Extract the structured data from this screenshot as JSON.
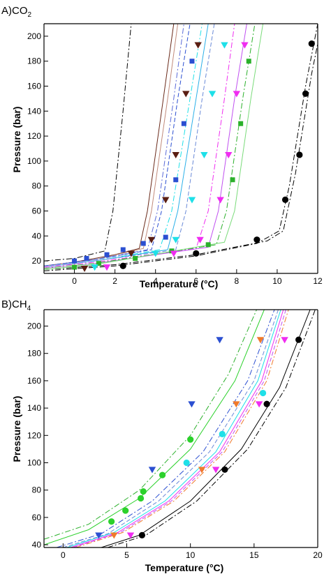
{
  "chart_data": [
    {
      "type": "scatter",
      "panel_label": "A)CO",
      "panel_subscript": "2",
      "xlabel": "Temperature (°C)",
      "ylabel": "Pressure (bar)",
      "xlim": [
        -1.5,
        12
      ],
      "ylim": [
        10,
        210
      ],
      "xticks": [
        0,
        2,
        4,
        6,
        8,
        10,
        12
      ],
      "yticks": [
        20,
        40,
        60,
        80,
        100,
        120,
        140,
        160,
        180,
        200
      ],
      "series": [
        {
          "marker": "circle",
          "color": "#000000",
          "points": [
            [
              2.4,
              16
            ],
            [
              6.0,
              26
            ],
            [
              9.0,
              37
            ],
            [
              10.4,
              69
            ],
            [
              11.1,
              105
            ],
            [
              11.4,
              154
            ],
            [
              11.7,
              194
            ]
          ]
        },
        {
          "marker": "square",
          "color": "#2b4fd1",
          "points": [
            [
              0.0,
              20
            ],
            [
              0.6,
              22
            ],
            [
              1.6,
              25
            ],
            [
              2.4,
              29
            ],
            [
              3.4,
              34
            ],
            [
              4.5,
              39
            ],
            [
              5.0,
              85
            ],
            [
              5.4,
              130
            ],
            [
              5.8,
              180
            ]
          ]
        },
        {
          "marker": "square",
          "color": "#2bb02b",
          "points": [
            [
              0.0,
              15
            ],
            [
              1.2,
              18
            ],
            [
              3.0,
              22
            ],
            [
              4.8,
              28
            ],
            [
              6.6,
              33
            ],
            [
              7.8,
              85
            ],
            [
              8.2,
              130
            ],
            [
              8.6,
              180
            ]
          ]
        },
        {
          "marker": "triangle-down",
          "color": "#5a1e12",
          "points": [
            [
              0.5,
              14
            ],
            [
              2.8,
              26
            ],
            [
              3.8,
              37
            ],
            [
              4.5,
              69
            ],
            [
              5.0,
              105
            ],
            [
              5.5,
              154
            ],
            [
              6.1,
              193
            ]
          ]
        },
        {
          "marker": "triangle-down",
          "color": "#1ee0e8",
          "points": [
            [
              1.0,
              15
            ],
            [
              4.0,
              26
            ],
            [
              5.0,
              37
            ],
            [
              5.8,
              69
            ],
            [
              6.4,
              105
            ],
            [
              6.8,
              154
            ],
            [
              7.4,
              193
            ]
          ]
        },
        {
          "marker": "triangle-down",
          "color": "#f02cf0",
          "points": [
            [
              1.6,
              15
            ],
            [
              4.9,
              26
            ],
            [
              6.2,
              37
            ],
            [
              7.2,
              69
            ],
            [
              7.6,
              105
            ],
            [
              8.0,
              154
            ],
            [
              8.4,
              193
            ]
          ]
        }
      ],
      "curves": [
        {
          "color": "#000000",
          "dash": "8,3,2,3",
          "points": [
            [
              -1.5,
              12
            ],
            [
              2,
              16
            ],
            [
              6,
              24
            ],
            [
              9,
              34
            ],
            [
              10.1,
              44
            ],
            [
              10.6,
              80
            ],
            [
              11.4,
              160
            ],
            [
              12,
              210
            ]
          ]
        },
        {
          "color": "#000000",
          "dash": "8,3,2,3",
          "points": [
            [
              -1.5,
              13
            ],
            [
              2,
              17
            ],
            [
              6,
              25
            ],
            [
              9.5,
              36
            ],
            [
              10.3,
              44
            ],
            [
              10.9,
              90
            ],
            [
              11.7,
              170
            ],
            [
              12.2,
              210
            ]
          ]
        },
        {
          "color": "#000000",
          "dash": "8,3,2,3",
          "points": [
            [
              -1.5,
              20
            ],
            [
              0,
              22
            ],
            [
              1.5,
              28
            ],
            [
              1.9,
              60
            ],
            [
              2.4,
              140
            ],
            [
              2.8,
              210
            ]
          ]
        },
        {
          "color": "#6a2a1a",
          "dash": "",
          "points": [
            [
              -1.5,
              16
            ],
            [
              0,
              19
            ],
            [
              2,
              25
            ],
            [
              3.2,
              30
            ],
            [
              3.6,
              60
            ],
            [
              4.3,
              140
            ],
            [
              4.9,
              210
            ]
          ]
        },
        {
          "color": "#c08a7a",
          "dash": "",
          "points": [
            [
              -1.5,
              16
            ],
            [
              1,
              21
            ],
            [
              3.4,
              30
            ],
            [
              3.8,
              60
            ],
            [
              4.6,
              150
            ],
            [
              5.1,
              210
            ]
          ]
        },
        {
          "color": "#5a6ad8",
          "dash": "8,3,2,3",
          "points": [
            [
              -1.5,
              16
            ],
            [
              1,
              21
            ],
            [
              3.6,
              29
            ],
            [
              4.1,
              60
            ],
            [
              4.9,
              150
            ],
            [
              5.4,
              210
            ]
          ]
        },
        {
          "color": "#2b4fd1",
          "dash": "6,3",
          "points": [
            [
              -1.5,
              16
            ],
            [
              1,
              21
            ],
            [
              3.8,
              29
            ],
            [
              4.3,
              60
            ],
            [
              5.1,
              150
            ],
            [
              5.7,
              210
            ]
          ]
        },
        {
          "color": "#1ee0e8",
          "dash": "8,3,2,3",
          "points": [
            [
              -1.5,
              15
            ],
            [
              1,
              20
            ],
            [
              4.2,
              29
            ],
            [
              4.8,
              60
            ],
            [
              5.7,
              150
            ],
            [
              6.3,
              210
            ]
          ]
        },
        {
          "color": "#2bb0e8",
          "dash": "",
          "points": [
            [
              -1.5,
              15
            ],
            [
              1,
              20
            ],
            [
              4.6,
              29
            ],
            [
              5.1,
              60
            ],
            [
              6.0,
              150
            ],
            [
              6.6,
              210
            ]
          ]
        },
        {
          "color": "#6a8ad8",
          "dash": "6,3",
          "points": [
            [
              -1.5,
              15
            ],
            [
              1,
              20
            ],
            [
              5.0,
              29
            ],
            [
              5.5,
              60
            ],
            [
              6.3,
              150
            ],
            [
              6.9,
              210
            ]
          ]
        },
        {
          "color": "#f02cf0",
          "dash": "8,3,2,3",
          "points": [
            [
              -1.5,
              15
            ],
            [
              1,
              19
            ],
            [
              6.0,
              30
            ],
            [
              6.6,
              60
            ],
            [
              7.4,
              150
            ],
            [
              7.9,
              210
            ]
          ]
        },
        {
          "color": "#c050f0",
          "dash": "",
          "points": [
            [
              -1.5,
              14
            ],
            [
              1,
              18
            ],
            [
              6.6,
              31
            ],
            [
              7.1,
              60
            ],
            [
              7.9,
              150
            ],
            [
              8.5,
              210
            ]
          ]
        },
        {
          "color": "#2bb02b",
          "dash": "8,3,2,3",
          "points": [
            [
              -1.5,
              14
            ],
            [
              1,
              18
            ],
            [
              7.0,
              33
            ],
            [
              7.5,
              60
            ],
            [
              8.3,
              150
            ],
            [
              8.9,
              210
            ]
          ]
        },
        {
          "color": "#7adb7a",
          "dash": "",
          "points": [
            [
              -1.5,
              13
            ],
            [
              1,
              17
            ],
            [
              7.4,
              35
            ],
            [
              7.9,
              60
            ],
            [
              8.7,
              150
            ],
            [
              9.3,
              210
            ]
          ]
        }
      ]
    },
    {
      "type": "scatter",
      "panel_label": "B)CH",
      "panel_subscript": "4",
      "xlabel": "Temperature (°C)",
      "ylabel": "Pressure (bar)",
      "xlim": [
        -1.5,
        20
      ],
      "ylim": [
        38,
        212
      ],
      "xticks": [
        0,
        5,
        10,
        15,
        20
      ],
      "yticks": [
        40,
        60,
        80,
        100,
        120,
        140,
        160,
        180,
        200
      ],
      "series": [
        {
          "marker": "circle",
          "color": "#000000",
          "points": [
            [
              6.2,
              47
            ],
            [
              12.7,
              95
            ],
            [
              16.0,
              143
            ],
            [
              18.5,
              190
            ]
          ]
        },
        {
          "marker": "circle",
          "color": "#2bd12b",
          "points": [
            [
              3.8,
              57
            ],
            [
              4.9,
              65
            ],
            [
              6.1,
              74
            ],
            [
              6.3,
              79
            ],
            [
              7.8,
              91
            ],
            [
              10.0,
              117
            ]
          ]
        },
        {
          "marker": "circle",
          "color": "#1ee0e8",
          "points": [
            [
              9.7,
              100
            ],
            [
              12.5,
              121
            ],
            [
              15.7,
              151
            ]
          ]
        },
        {
          "marker": "triangle-down",
          "color": "#2b4fd1",
          "points": [
            [
              2.8,
              47
            ],
            [
              7.0,
              95
            ],
            [
              10.1,
              143
            ],
            [
              12.3,
              190
            ]
          ]
        },
        {
          "marker": "triangle-down",
          "color": "#f07a2b",
          "points": [
            [
              4.0,
              47
            ],
            [
              10.9,
              95
            ],
            [
              13.6,
              143
            ],
            [
              15.5,
              190
            ]
          ]
        },
        {
          "marker": "triangle-down",
          "color": "#f02cf0",
          "points": [
            [
              5.3,
              47
            ],
            [
              12.0,
              95
            ],
            [
              15.4,
              143
            ],
            [
              17.4,
              190
            ]
          ]
        }
      ],
      "curves": [
        {
          "color": "#2bb02b",
          "dash": "8,3,2,3",
          "points": [
            [
              -1.5,
              44
            ],
            [
              2,
              55
            ],
            [
              6,
              80
            ],
            [
              10,
              120
            ],
            [
              13,
              165
            ],
            [
              15.2,
              212
            ]
          ]
        },
        {
          "color": "#2bd12b",
          "dash": "",
          "points": [
            [
              -1.5,
              40
            ],
            [
              2,
              51
            ],
            [
              6,
              74
            ],
            [
              10,
              110
            ],
            [
              13.5,
              160
            ],
            [
              15.8,
              212
            ]
          ]
        },
        {
          "color": "#2b4fd1",
          "dash": "8,3,2,3",
          "points": [
            [
              -0.5,
              38
            ],
            [
              3,
              48
            ],
            [
              7,
              72
            ],
            [
              11,
              108
            ],
            [
              14.5,
              160
            ],
            [
              16.6,
              212
            ]
          ]
        },
        {
          "color": "#6a8ad8",
          "dash": "6,3",
          "points": [
            [
              0,
              38
            ],
            [
              3.5,
              48
            ],
            [
              7.5,
              72
            ],
            [
              11.5,
              108
            ],
            [
              15,
              160
            ],
            [
              16.9,
              212
            ]
          ]
        },
        {
          "color": "#1ee0e8",
          "dash": "",
          "points": [
            [
              0.3,
              38
            ],
            [
              4,
              49
            ],
            [
              8,
              72
            ],
            [
              12,
              108
            ],
            [
              15.3,
              160
            ],
            [
              17.1,
              212
            ]
          ]
        },
        {
          "color": "#f02cf0",
          "dash": "",
          "points": [
            [
              0.6,
              38
            ],
            [
              4.3,
              49
            ],
            [
              8.3,
              72
            ],
            [
              12.3,
              108
            ],
            [
              15.6,
              160
            ],
            [
              17.3,
              212
            ]
          ]
        },
        {
          "color": "#f07a2b",
          "dash": "8,3,2,3",
          "points": [
            [
              1.0,
              38
            ],
            [
              4.7,
              49
            ],
            [
              8.7,
              72
            ],
            [
              12.7,
              108
            ],
            [
              16.0,
              160
            ],
            [
              17.7,
              212
            ]
          ]
        },
        {
          "color": "#c050f0",
          "dash": "6,3",
          "points": [
            [
              0.8,
              38
            ],
            [
              4.5,
              49
            ],
            [
              8.5,
              72
            ],
            [
              12.5,
              108
            ],
            [
              15.8,
              160
            ],
            [
              17.5,
              212
            ]
          ]
        },
        {
          "color": "#000000",
          "dash": "",
          "points": [
            [
              3,
              38
            ],
            [
              6,
              47
            ],
            [
              10,
              72
            ],
            [
              14,
              110
            ],
            [
              17,
              155
            ],
            [
              19.4,
              212
            ]
          ]
        },
        {
          "color": "#000000",
          "dash": "8,3,2,3",
          "points": [
            [
              3.5,
              38
            ],
            [
              6.5,
              47
            ],
            [
              10.5,
              72
            ],
            [
              14.5,
              110
            ],
            [
              17.5,
              155
            ],
            [
              19.8,
              212
            ]
          ]
        }
      ]
    }
  ]
}
